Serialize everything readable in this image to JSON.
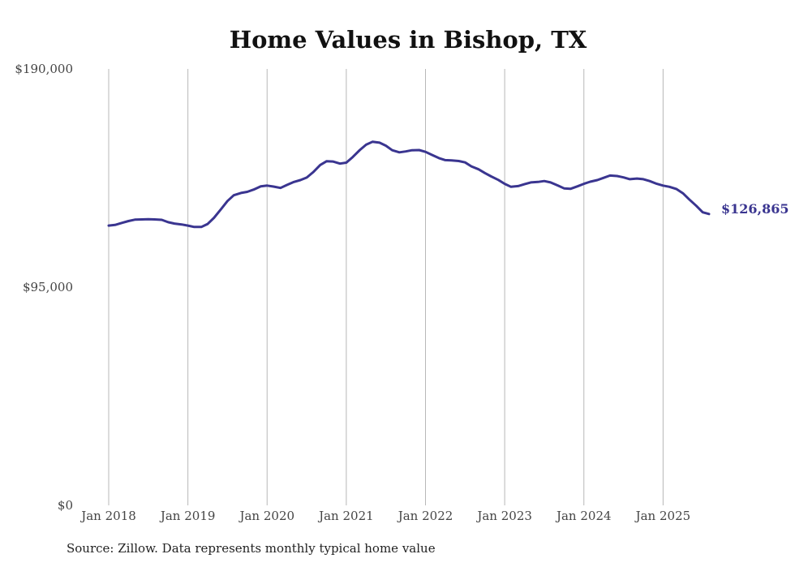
{
  "chart_data": {
    "type": "line",
    "title": "Home Values in Bishop, TX",
    "xlabel": "",
    "ylabel": "",
    "ylim": [
      0,
      190000
    ],
    "yticks": [
      {
        "value": 0,
        "label": "$0"
      },
      {
        "value": 95000,
        "label": "$95,000"
      },
      {
        "value": 190000,
        "label": "$190,000"
      }
    ],
    "xticks": [
      {
        "value": 2018.0,
        "label": "Jan 2018"
      },
      {
        "value": 2019.0,
        "label": "Jan 2019"
      },
      {
        "value": 2020.0,
        "label": "Jan 2020"
      },
      {
        "value": 2021.0,
        "label": "Jan 2021"
      },
      {
        "value": 2022.0,
        "label": "Jan 2022"
      },
      {
        "value": 2023.0,
        "label": "Jan 2023"
      },
      {
        "value": 2024.0,
        "label": "Jan 2024"
      },
      {
        "value": 2025.0,
        "label": "Jan 2025"
      }
    ],
    "xlim": [
      2018.0,
      2025.58
    ],
    "grid": "vertical",
    "series": [
      {
        "name": "Bishop, TX",
        "color": "#3a3590",
        "x": [
          2018.0,
          2018.08,
          2018.17,
          2018.25,
          2018.33,
          2018.42,
          2018.5,
          2018.58,
          2018.67,
          2018.75,
          2018.83,
          2018.92,
          2019.0,
          2019.08,
          2019.17,
          2019.25,
          2019.33,
          2019.42,
          2019.5,
          2019.58,
          2019.67,
          2019.75,
          2019.83,
          2019.92,
          2020.0,
          2020.08,
          2020.17,
          2020.25,
          2020.33,
          2020.42,
          2020.5,
          2020.58,
          2020.67,
          2020.75,
          2020.83,
          2020.92,
          2021.0,
          2021.08,
          2021.17,
          2021.25,
          2021.33,
          2021.42,
          2021.5,
          2021.58,
          2021.67,
          2021.75,
          2021.83,
          2021.92,
          2022.0,
          2022.08,
          2022.17,
          2022.25,
          2022.33,
          2022.42,
          2022.5,
          2022.58,
          2022.67,
          2022.75,
          2022.83,
          2022.92,
          2023.0,
          2023.08,
          2023.17,
          2023.25,
          2023.33,
          2023.42,
          2023.5,
          2023.58,
          2023.67,
          2023.75,
          2023.83,
          2023.92,
          2024.0,
          2024.08,
          2024.17,
          2024.25,
          2024.33,
          2024.42,
          2024.5,
          2024.58,
          2024.67,
          2024.75,
          2024.83,
          2024.92,
          2025.0,
          2025.08,
          2025.17,
          2025.25,
          2025.33,
          2025.42,
          2025.5,
          2025.58
        ],
        "values": [
          121800,
          122100,
          123000,
          123800,
          124400,
          124500,
          124600,
          124500,
          124300,
          123300,
          122700,
          122300,
          121800,
          121200,
          121200,
          122500,
          125200,
          129000,
          132500,
          135000,
          136000,
          136500,
          137500,
          138900,
          139200,
          138800,
          138200,
          139500,
          140700,
          141600,
          142700,
          145000,
          148200,
          149800,
          149700,
          148800,
          149200,
          151600,
          154700,
          157000,
          158300,
          157900,
          156600,
          154600,
          153700,
          154100,
          154600,
          154700,
          153900,
          152600,
          151200,
          150300,
          150200,
          149900,
          149300,
          147600,
          146300,
          144700,
          143200,
          141700,
          140000,
          138700,
          139000,
          139800,
          140600,
          140800,
          141200,
          140600,
          139300,
          138000,
          137800,
          138900,
          140000,
          140900,
          141600,
          142600,
          143600,
          143400,
          142800,
          142000,
          142300,
          142000,
          141200,
          140000,
          139200,
          138700,
          137700,
          135900,
          133200,
          130400,
          127600,
          126865
        ]
      }
    ],
    "end_label": "$126,865"
  },
  "footer": {
    "source": "Source: Zillow. Data represents monthly typical home value"
  }
}
